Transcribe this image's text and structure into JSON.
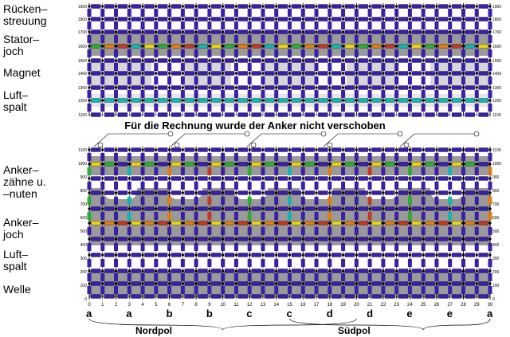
{
  "left_labels": [
    {
      "id": "rueckenstreuung",
      "text": "Rücken–\nstreuung"
    },
    {
      "id": "statorjoch",
      "text": "Stator–\njoch"
    },
    {
      "id": "magnet",
      "text": "Magnet"
    },
    {
      "id": "luftspalt-top",
      "text": "Luft–\nspalt"
    },
    {
      "id": "ankerzaehne",
      "text": "Anker–\nzähne u.\n–nuten"
    },
    {
      "id": "ankerjoch",
      "text": "Anker–\njoch"
    },
    {
      "id": "luftspalt-bottom",
      "text": "Luft–\nspalt"
    },
    {
      "id": "welle",
      "text": "Welle"
    }
  ],
  "caption": "Für die Rechnung wurde der Anker nicht verschoben",
  "top_y_ticks": [
    "1900",
    "1800",
    "1700",
    "1600",
    "1500",
    "1400",
    "1300",
    "1200",
    "1100"
  ],
  "bottom_y_ticks": [
    "1100",
    "1000",
    "900",
    "800",
    "700",
    "600",
    "500",
    "400",
    "300",
    "200",
    "100",
    "0"
  ],
  "x_ticks": [
    "0",
    "1",
    "2",
    "3",
    "4",
    "5",
    "6",
    "7",
    "8",
    "9",
    "10",
    "11",
    "12",
    "13",
    "14",
    "15",
    "16",
    "17",
    "18",
    "19",
    "20",
    "21",
    "22",
    "23",
    "24",
    "25",
    "26",
    "27",
    "28",
    "29",
    "30"
  ],
  "phase_letters": [
    "a",
    "a",
    "b",
    "b",
    "c",
    "c",
    "d",
    "d",
    "e",
    "e",
    "a"
  ],
  "poles": [
    "Nordpol",
    "Südpol"
  ],
  "colors": {
    "resistor": "#3a1fa8",
    "iron": "#9a9a9a",
    "magnet": "#d6d6d6",
    "accent_red": "#c0392b",
    "accent_green": "#2eaa3a",
    "accent_yellow": "#e8d21a",
    "accent_cyan": "#17b3b0",
    "accent_orange": "#e07b1a"
  }
}
